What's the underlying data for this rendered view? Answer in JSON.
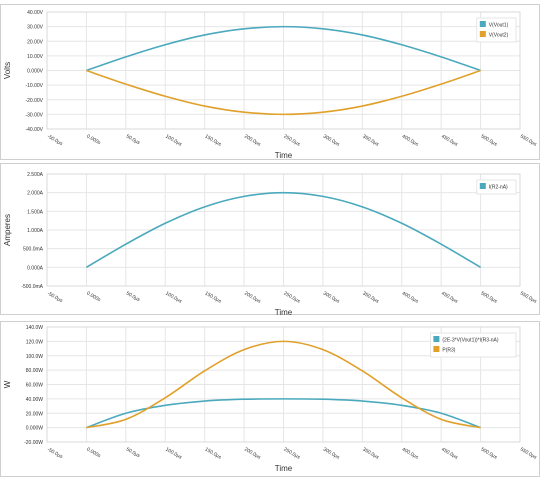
{
  "palette": {
    "teal": "#4aa9bd",
    "orange": "#e0a02a",
    "grid": "#e6e6e6",
    "frame": "#cfcfcf",
    "text": "#333333"
  },
  "chart_data": [
    {
      "type": "line",
      "title": "",
      "xlabel": "Time",
      "ylabel": "Volts",
      "xlim": [
        -50,
        550
      ],
      "ylim": [
        -40,
        40
      ],
      "grid": true,
      "legend": "top-right",
      "x_ticks": [
        -50,
        0,
        50,
        100,
        150,
        200,
        250,
        300,
        350,
        400,
        450,
        500,
        550
      ],
      "x_tick_labels": [
        "-50.0µs",
        "0.000s",
        "50.0µs",
        "100.0µs",
        "150.0µs",
        "200.0µs",
        "250.0µs",
        "300.0µs",
        "350.0µs",
        "400.0µs",
        "450.0µs",
        "500.0µs",
        "550.0µs"
      ],
      "y_ticks": [
        -40,
        -30,
        -20,
        -10,
        0,
        10,
        20,
        30,
        40
      ],
      "y_tick_labels": [
        "-40.00V",
        "-30.00V",
        "-20.00V",
        "-10.00V",
        "0.000V",
        "10.00V",
        "20.00V",
        "30.00V",
        "40.00V"
      ],
      "series": [
        {
          "name": "V(Vout1)",
          "color": "#4aa9bd",
          "x": [
            0,
            50,
            100,
            150,
            200,
            250,
            300,
            350,
            400,
            450,
            500
          ],
          "y": [
            0,
            9.3,
            17.6,
            24.3,
            28.5,
            30,
            28.5,
            24.3,
            17.6,
            9.3,
            0
          ]
        },
        {
          "name": "V(Vout2)",
          "color": "#e0a02a",
          "x": [
            0,
            50,
            100,
            150,
            200,
            250,
            300,
            350,
            400,
            450,
            500
          ],
          "y": [
            0,
            -9.3,
            -17.6,
            -24.3,
            -28.5,
            -30,
            -28.5,
            -24.3,
            -17.6,
            -9.3,
            0
          ]
        }
      ]
    },
    {
      "type": "line",
      "title": "",
      "xlabel": "Time",
      "ylabel": "Amperes",
      "xlim": [
        -50,
        550
      ],
      "ylim": [
        -0.5,
        2.5
      ],
      "grid": true,
      "legend": "top-right",
      "x_ticks": [
        -50,
        0,
        50,
        100,
        150,
        200,
        250,
        300,
        350,
        400,
        450,
        500,
        550
      ],
      "x_tick_labels": [
        "-50.0µs",
        "0.000s",
        "50.0µs",
        "100.0µs",
        "150.0µs",
        "200.0µs",
        "250.0µs",
        "300.0µs",
        "350.0µs",
        "400.0µs",
        "450.0µs",
        "500.0µs",
        "550.0µs"
      ],
      "y_ticks": [
        -0.5,
        0,
        0.5,
        1,
        1.5,
        2,
        2.5
      ],
      "y_tick_labels": [
        "-500.0mA",
        "0.000A",
        "500.0mA",
        "1.000A",
        "1.500A",
        "2.000A",
        "2.500A"
      ],
      "series": [
        {
          "name": "I(R2-nA)",
          "color": "#4aa9bd",
          "x": [
            0,
            50,
            100,
            150,
            200,
            250,
            300,
            350,
            400,
            450,
            500
          ],
          "y": [
            0,
            0.62,
            1.18,
            1.62,
            1.9,
            2.0,
            1.9,
            1.62,
            1.18,
            0.62,
            0
          ]
        }
      ]
    },
    {
      "type": "line",
      "title": "",
      "xlabel": "Time",
      "ylabel": "W",
      "xlim": [
        -50,
        550
      ],
      "ylim": [
        -20,
        140
      ],
      "grid": true,
      "legend": "top-right",
      "x_ticks": [
        -50,
        0,
        50,
        100,
        150,
        200,
        250,
        300,
        350,
        400,
        450,
        500,
        550
      ],
      "x_tick_labels": [
        "-50.0µs",
        "0.000s",
        "50.0µs",
        "100.0µs",
        "150.0µs",
        "200.0µs",
        "250.0µs",
        "300.0µs",
        "350.0µs",
        "400.0µs",
        "450.0µs",
        "500.0µs",
        "550.0µs"
      ],
      "y_ticks": [
        -20,
        0,
        20,
        40,
        60,
        80,
        100,
        120,
        140
      ],
      "y_tick_labels": [
        "-20.00W",
        "0.000W",
        "20.00W",
        "40.00W",
        "60.00W",
        "80.00W",
        "100.0W",
        "120.0W",
        "140.0W"
      ],
      "series": [
        {
          "name": "(2E-3*V(Vout1))*I(R3-nA)",
          "color": "#4aa9bd",
          "x": [
            0,
            50,
            100,
            150,
            200,
            250,
            300,
            350,
            400,
            450,
            500
          ],
          "y": [
            0,
            20,
            31,
            37,
            39.5,
            40,
            39.5,
            37,
            31,
            20,
            0
          ]
        },
        {
          "name": "P(R3)",
          "color": "#e0a02a",
          "x": [
            0,
            50,
            100,
            150,
            200,
            250,
            300,
            350,
            400,
            450,
            500
          ],
          "y": [
            0,
            11.5,
            41.5,
            79,
            108.5,
            120,
            108.5,
            79,
            41.5,
            11.5,
            0
          ]
        }
      ]
    }
  ]
}
